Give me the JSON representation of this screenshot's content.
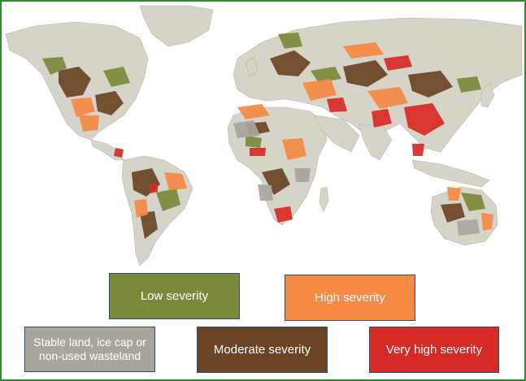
{
  "colors": {
    "low": "#7b8a3a",
    "high": "#f58a44",
    "stable": "#a8a59d",
    "moderate": "#6b4426",
    "very_high": "#d62a24",
    "base_land": "#d6d3c9",
    "frame": "#2f8a2f"
  },
  "legend": {
    "low": "Low severity",
    "high": "High severity",
    "stable": "Stable land, ice cap or non-used wasteland",
    "moderate": "Moderate severity",
    "very_high": "Very high severity"
  }
}
